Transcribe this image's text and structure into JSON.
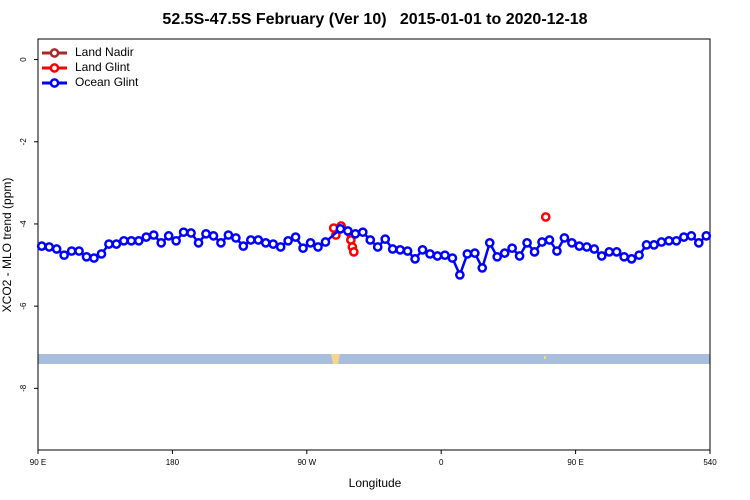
{
  "chart_data": {
    "type": "line",
    "title": "52.5S-47.5S February (Ver 10)   2015-01-01 to 2020-12-18",
    "x_label": "Longitude",
    "y_label": "XCO2 - MLO trend (ppm)",
    "xlim": [
      90,
      540
    ],
    "ylim": [
      -9.5,
      0.5
    ],
    "xticks": [
      {
        "value": 90,
        "label": "90 E"
      },
      180,
      {
        "value": 270,
        "label": "90 W"
      },
      {
        "value": 360,
        "label": "0"
      },
      {
        "value": 450,
        "label": "90 E"
      },
      540
    ],
    "yticks": [
      0,
      -2,
      -4,
      -6,
      -8
    ],
    "legend": "top-left",
    "series": [
      {
        "name": "Land Nadir",
        "color": "#a52a2a",
        "x": [],
        "values": []
      },
      {
        "name": "Land Glint",
        "color": "#ff0000",
        "x": [
          288,
          289.5,
          293,
          299.5,
          300.5,
          301.5,
          430
        ],
        "values": [
          -4.1,
          -4.27,
          -4.05,
          -4.39,
          -4.56,
          -4.68,
          -3.83
        ]
      },
      {
        "name": "Ocean Glint",
        "color": "#0000ff",
        "x": [
          92.5,
          97.5,
          102.5,
          107.5,
          112.5,
          117.5,
          122.5,
          127.5,
          132.5,
          137.5,
          142.5,
          147.5,
          152.5,
          157.5,
          162.5,
          167.5,
          172.5,
          177.5,
          182.5,
          187.5,
          192.5,
          197.5,
          202.5,
          207.5,
          212.5,
          217.5,
          222.5,
          227.5,
          232.5,
          237.5,
          242.5,
          247.5,
          252.5,
          257.5,
          262.5,
          267.5,
          272.5,
          277.5,
          282.5,
          292.5,
          297.5,
          302.5,
          307.5,
          312.5,
          317.5,
          322.5,
          327.5,
          332.5,
          337.5,
          342.5,
          347.5,
          352.5,
          357.5,
          362.5,
          367.5,
          372.5,
          377.5,
          382.5,
          387.5,
          392.5,
          397.5,
          402.5,
          407.5,
          412.5,
          417.5,
          422.5,
          427.5,
          432.5,
          437.5,
          442.5,
          447.5,
          452.5,
          457.5,
          462.5,
          467.5,
          472.5,
          477.5,
          482.5,
          487.5,
          492.5,
          497.5,
          502.5,
          507.5,
          512.5,
          517.5,
          522.5,
          527.5,
          532.5,
          537.5
        ],
        "values": [
          -4.54,
          -4.56,
          -4.61,
          -4.76,
          -4.66,
          -4.66,
          -4.8,
          -4.83,
          -4.73,
          -4.49,
          -4.49,
          -4.41,
          -4.41,
          -4.41,
          -4.32,
          -4.27,
          -4.46,
          -4.29,
          -4.41,
          -4.2,
          -4.22,
          -4.46,
          -4.24,
          -4.29,
          -4.46,
          -4.27,
          -4.34,
          -4.54,
          -4.39,
          -4.39,
          -4.46,
          -4.49,
          -4.56,
          -4.41,
          -4.32,
          -4.59,
          -4.46,
          -4.56,
          -4.44,
          -4.12,
          -4.17,
          -4.24,
          -4.2,
          -4.39,
          -4.56,
          -4.37,
          -4.61,
          -4.63,
          -4.66,
          -4.85,
          -4.63,
          -4.73,
          -4.78,
          -4.76,
          -4.83,
          -5.24,
          -4.73,
          -4.71,
          -5.07,
          -4.46,
          -4.8,
          -4.71,
          -4.59,
          -4.78,
          -4.46,
          -4.68,
          -4.44,
          -4.39,
          -4.66,
          -4.34,
          -4.46,
          -4.54,
          -4.56,
          -4.61,
          -4.78,
          -4.68,
          -4.68,
          -4.8,
          -4.85,
          -4.76,
          -4.51,
          -4.51,
          -4.44,
          -4.41,
          -4.41,
          -4.32,
          -4.29,
          -4.46,
          -4.29
        ]
      }
    ]
  }
}
